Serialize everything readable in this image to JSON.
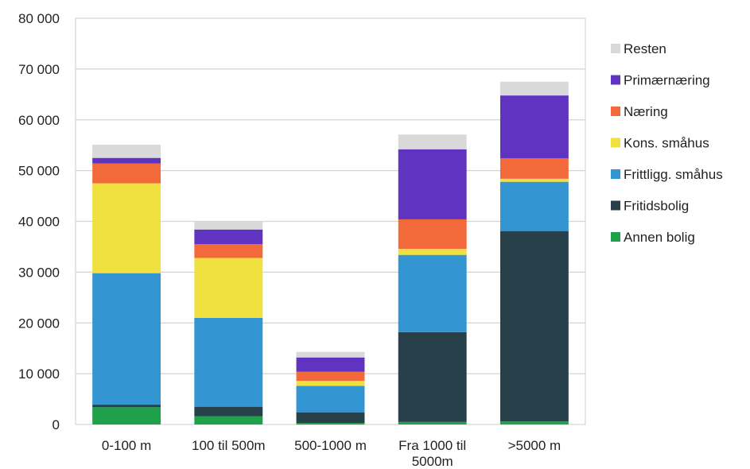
{
  "chart_data": {
    "type": "bar",
    "stacked": true,
    "categories": [
      "0-100 m",
      "100 til 500m",
      "500-1000 m",
      "Fra 1000 til 5000m",
      ">5000 m"
    ],
    "category_lines": [
      [
        "0-100 m"
      ],
      [
        "100 til 500m"
      ],
      [
        "500-1000 m"
      ],
      [
        "Fra 1000 til",
        "5000m"
      ],
      [
        ">5000 m"
      ]
    ],
    "y_ticks": [
      "0",
      "10 000",
      "20 000",
      "30 000",
      "40 000",
      "50 000",
      "60 000",
      "70 000",
      "80 000"
    ],
    "ylim": [
      0,
      80000
    ],
    "grid": true,
    "legend_position": "right",
    "series": [
      {
        "name": "Annen bolig",
        "color": "#1fa04a",
        "values": [
          3400,
          1600,
          300,
          500,
          600
        ]
      },
      {
        "name": "Fritidsbolig",
        "color": "#27404a",
        "values": [
          500,
          1900,
          2100,
          17700,
          37500
        ]
      },
      {
        "name": "Frittligg. småhus",
        "color": "#3495d3",
        "values": [
          25900,
          17500,
          5200,
          15200,
          9700
        ]
      },
      {
        "name": "Kons. småhus",
        "color": "#f0e040",
        "values": [
          17700,
          11800,
          1000,
          1200,
          600
        ]
      },
      {
        "name": "Næring",
        "color": "#f26a3a",
        "values": [
          3900,
          2700,
          1800,
          5800,
          4000
        ]
      },
      {
        "name": "Primærnæring",
        "color": "#6034c0",
        "values": [
          1100,
          2900,
          2800,
          13800,
          12400
        ]
      },
      {
        "name": "Resten",
        "color": "#d9d9d9",
        "values": [
          2600,
          1600,
          1100,
          2900,
          2700
        ]
      }
    ],
    "legend_order": [
      "Resten",
      "Primærnæring",
      "Næring",
      "Kons. småhus",
      "Frittligg. småhus",
      "Fritidsbolig",
      "Annen bolig"
    ]
  }
}
